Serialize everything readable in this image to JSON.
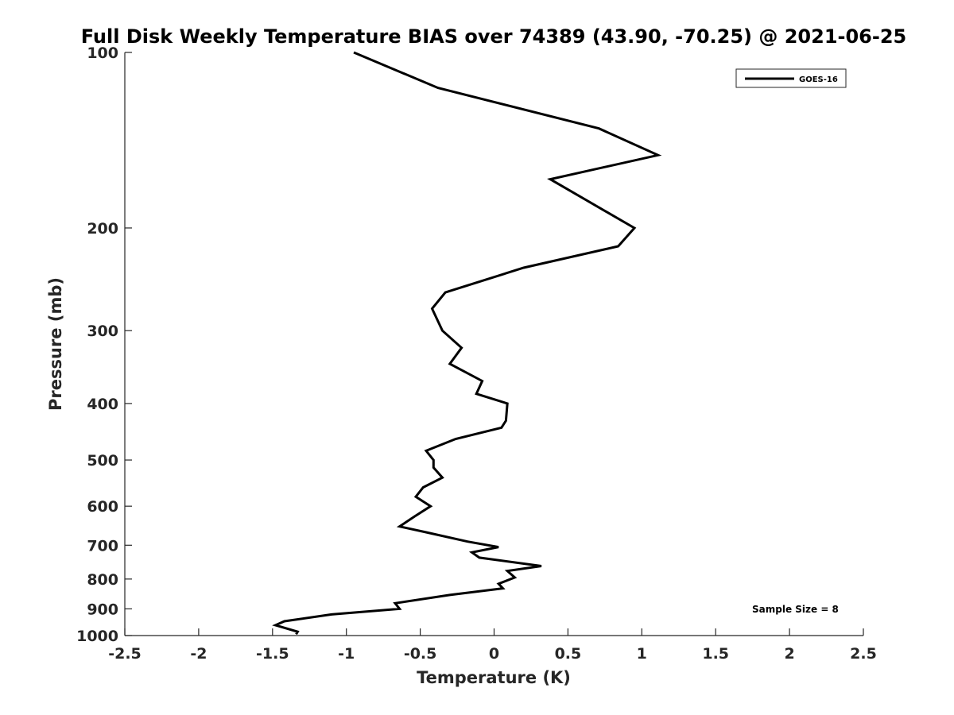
{
  "chart_data": {
    "type": "line",
    "title": "Full Disk Weekly Temperature BIAS over 74389 (43.90, -70.25) @ 2021-06-25",
    "xlabel": "Temperature (K)",
    "ylabel": "Pressure (mb)",
    "xlim": [
      -2.5,
      2.5
    ],
    "ylim": [
      100,
      1000
    ],
    "yscale": "log",
    "yaxis_reversed": true,
    "x_ticks": [
      -2.5,
      -2,
      -1.5,
      -1,
      -0.5,
      0,
      0.5,
      1,
      1.5,
      2,
      2.5
    ],
    "x_tick_labels": [
      "-2.5",
      "-2",
      "-1.5",
      "-1",
      "-0.5",
      "0",
      "0.5",
      "1",
      "1.5",
      "2",
      "2.5"
    ],
    "y_ticks": [
      100,
      200,
      300,
      400,
      500,
      600,
      700,
      800,
      900,
      1000
    ],
    "y_tick_labels": [
      "100",
      "200",
      "300",
      "400",
      "500",
      "600",
      "700",
      "800",
      "900",
      "1000"
    ],
    "grid": false,
    "legend_position": "top-right",
    "line_color": "#000000",
    "series": [
      {
        "name": "GOES-16",
        "points": [
          {
            "x": -0.95,
            "p": 100
          },
          {
            "x": -0.38,
            "p": 115
          },
          {
            "x": 0.71,
            "p": 135
          },
          {
            "x": 1.11,
            "p": 150
          },
          {
            "x": 0.38,
            "p": 165
          },
          {
            "x": 0.95,
            "p": 200
          },
          {
            "x": 0.84,
            "p": 215
          },
          {
            "x": 0.2,
            "p": 234
          },
          {
            "x": -0.33,
            "p": 258
          },
          {
            "x": -0.42,
            "p": 275
          },
          {
            "x": -0.35,
            "p": 300
          },
          {
            "x": -0.22,
            "p": 321
          },
          {
            "x": -0.3,
            "p": 342
          },
          {
            "x": -0.08,
            "p": 366
          },
          {
            "x": -0.12,
            "p": 385
          },
          {
            "x": 0.09,
            "p": 400
          },
          {
            "x": 0.08,
            "p": 428
          },
          {
            "x": 0.05,
            "p": 440
          },
          {
            "x": -0.26,
            "p": 460
          },
          {
            "x": -0.46,
            "p": 482
          },
          {
            "x": -0.41,
            "p": 500
          },
          {
            "x": -0.41,
            "p": 515
          },
          {
            "x": -0.35,
            "p": 536
          },
          {
            "x": -0.48,
            "p": 557
          },
          {
            "x": -0.53,
            "p": 578
          },
          {
            "x": -0.43,
            "p": 600
          },
          {
            "x": -0.54,
            "p": 625
          },
          {
            "x": -0.64,
            "p": 650
          },
          {
            "x": -0.46,
            "p": 665
          },
          {
            "x": -0.18,
            "p": 690
          },
          {
            "x": 0.03,
            "p": 705
          },
          {
            "x": -0.15,
            "p": 720
          },
          {
            "x": -0.1,
            "p": 735
          },
          {
            "x": 0.32,
            "p": 760
          },
          {
            "x": 0.09,
            "p": 775
          },
          {
            "x": 0.14,
            "p": 795
          },
          {
            "x": 0.03,
            "p": 815
          },
          {
            "x": 0.06,
            "p": 830
          },
          {
            "x": -0.3,
            "p": 852
          },
          {
            "x": -0.67,
            "p": 880
          },
          {
            "x": -0.64,
            "p": 900
          },
          {
            "x": -1.1,
            "p": 920
          },
          {
            "x": -1.42,
            "p": 945
          },
          {
            "x": -1.48,
            "p": 960
          },
          {
            "x": -1.33,
            "p": 985
          },
          {
            "x": -1.34,
            "p": 995
          }
        ]
      }
    ],
    "annotation": "Sample Size = 8"
  }
}
